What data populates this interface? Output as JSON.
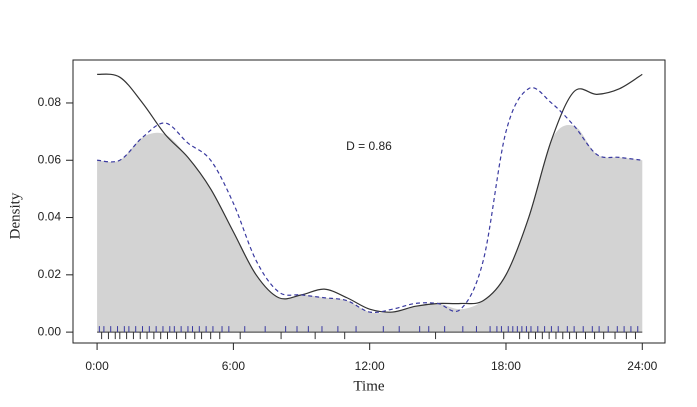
{
  "chart_data": {
    "type": "overlap",
    "xlabel": "Time",
    "ylabel": "Density",
    "annotation": "D = 0.86",
    "x": [
      0,
      1,
      2,
      3,
      4,
      5,
      6,
      7,
      8,
      9,
      10,
      11,
      12,
      13,
      14,
      15,
      16,
      17,
      18,
      19,
      20,
      21,
      22,
      23,
      24
    ],
    "series": [
      {
        "color": "#333333",
        "linestyle": "solid",
        "values": [
          0.09,
          0.089,
          0.08,
          0.069,
          0.061,
          0.05,
          0.035,
          0.02,
          0.012,
          0.013,
          0.015,
          0.012,
          0.008,
          0.007,
          0.009,
          0.01,
          0.01,
          0.011,
          0.02,
          0.04,
          0.067,
          0.084,
          0.083,
          0.085,
          0.09
        ],
        "rug": [
          0.2,
          0.5,
          0.8,
          1.0,
          1.3,
          1.6,
          1.9,
          2.2,
          2.5,
          2.8,
          3.1,
          3.5,
          3.9,
          4.3,
          4.6,
          5.0,
          5.4,
          6.3,
          8.1,
          9.6,
          10.9,
          14.9,
          17.9,
          18.6,
          19.0,
          19.3,
          19.6,
          19.9,
          20.2,
          20.5,
          20.8,
          21.1,
          21.5,
          21.9,
          22.3,
          22.8,
          23.3,
          23.7
        ]
      },
      {
        "color": "#3a3aa0",
        "linestyle": "dashed",
        "values": [
          0.06,
          0.06,
          0.068,
          0.073,
          0.066,
          0.06,
          0.045,
          0.025,
          0.014,
          0.013,
          0.012,
          0.011,
          0.007,
          0.008,
          0.01,
          0.01,
          0.008,
          0.025,
          0.07,
          0.085,
          0.08,
          0.072,
          0.062,
          0.061,
          0.06
        ],
        "rug": [
          0.1,
          0.3,
          0.6,
          0.9,
          1.2,
          1.4,
          1.7,
          2.0,
          2.3,
          2.6,
          2.9,
          3.2,
          3.4,
          3.7,
          4.0,
          4.2,
          4.5,
          4.8,
          5.1,
          5.5,
          5.8,
          6.5,
          7.4,
          8.3,
          8.8,
          9.3,
          9.9,
          10.6,
          11.4,
          12.6,
          13.3,
          14.2,
          14.6,
          15.3,
          16.1,
          16.7,
          17.3,
          17.6,
          17.8,
          18.1,
          18.3,
          18.5,
          18.7,
          18.9,
          19.1,
          19.4,
          19.7,
          20.0,
          20.3,
          20.7,
          21.0,
          21.4,
          21.8,
          22.1,
          22.5,
          22.9,
          23.2,
          23.5,
          23.8
        ]
      }
    ],
    "overlap_color": "#d3d3d3",
    "xlim": [
      -1.06,
      25.0
    ],
    "xticks": [
      {
        "value": 0,
        "label": "0:00"
      },
      {
        "value": 6,
        "label": "6:00"
      },
      {
        "value": 12,
        "label": "12:00"
      },
      {
        "value": 18,
        "label": "18:00"
      },
      {
        "value": 24,
        "label": "24:00"
      }
    ],
    "ylim": [
      -0.0038,
      0.095
    ],
    "yticks": [
      {
        "value": 0,
        "label": "0.00"
      },
      0.02,
      0.04,
      0.06,
      0.08
    ]
  }
}
